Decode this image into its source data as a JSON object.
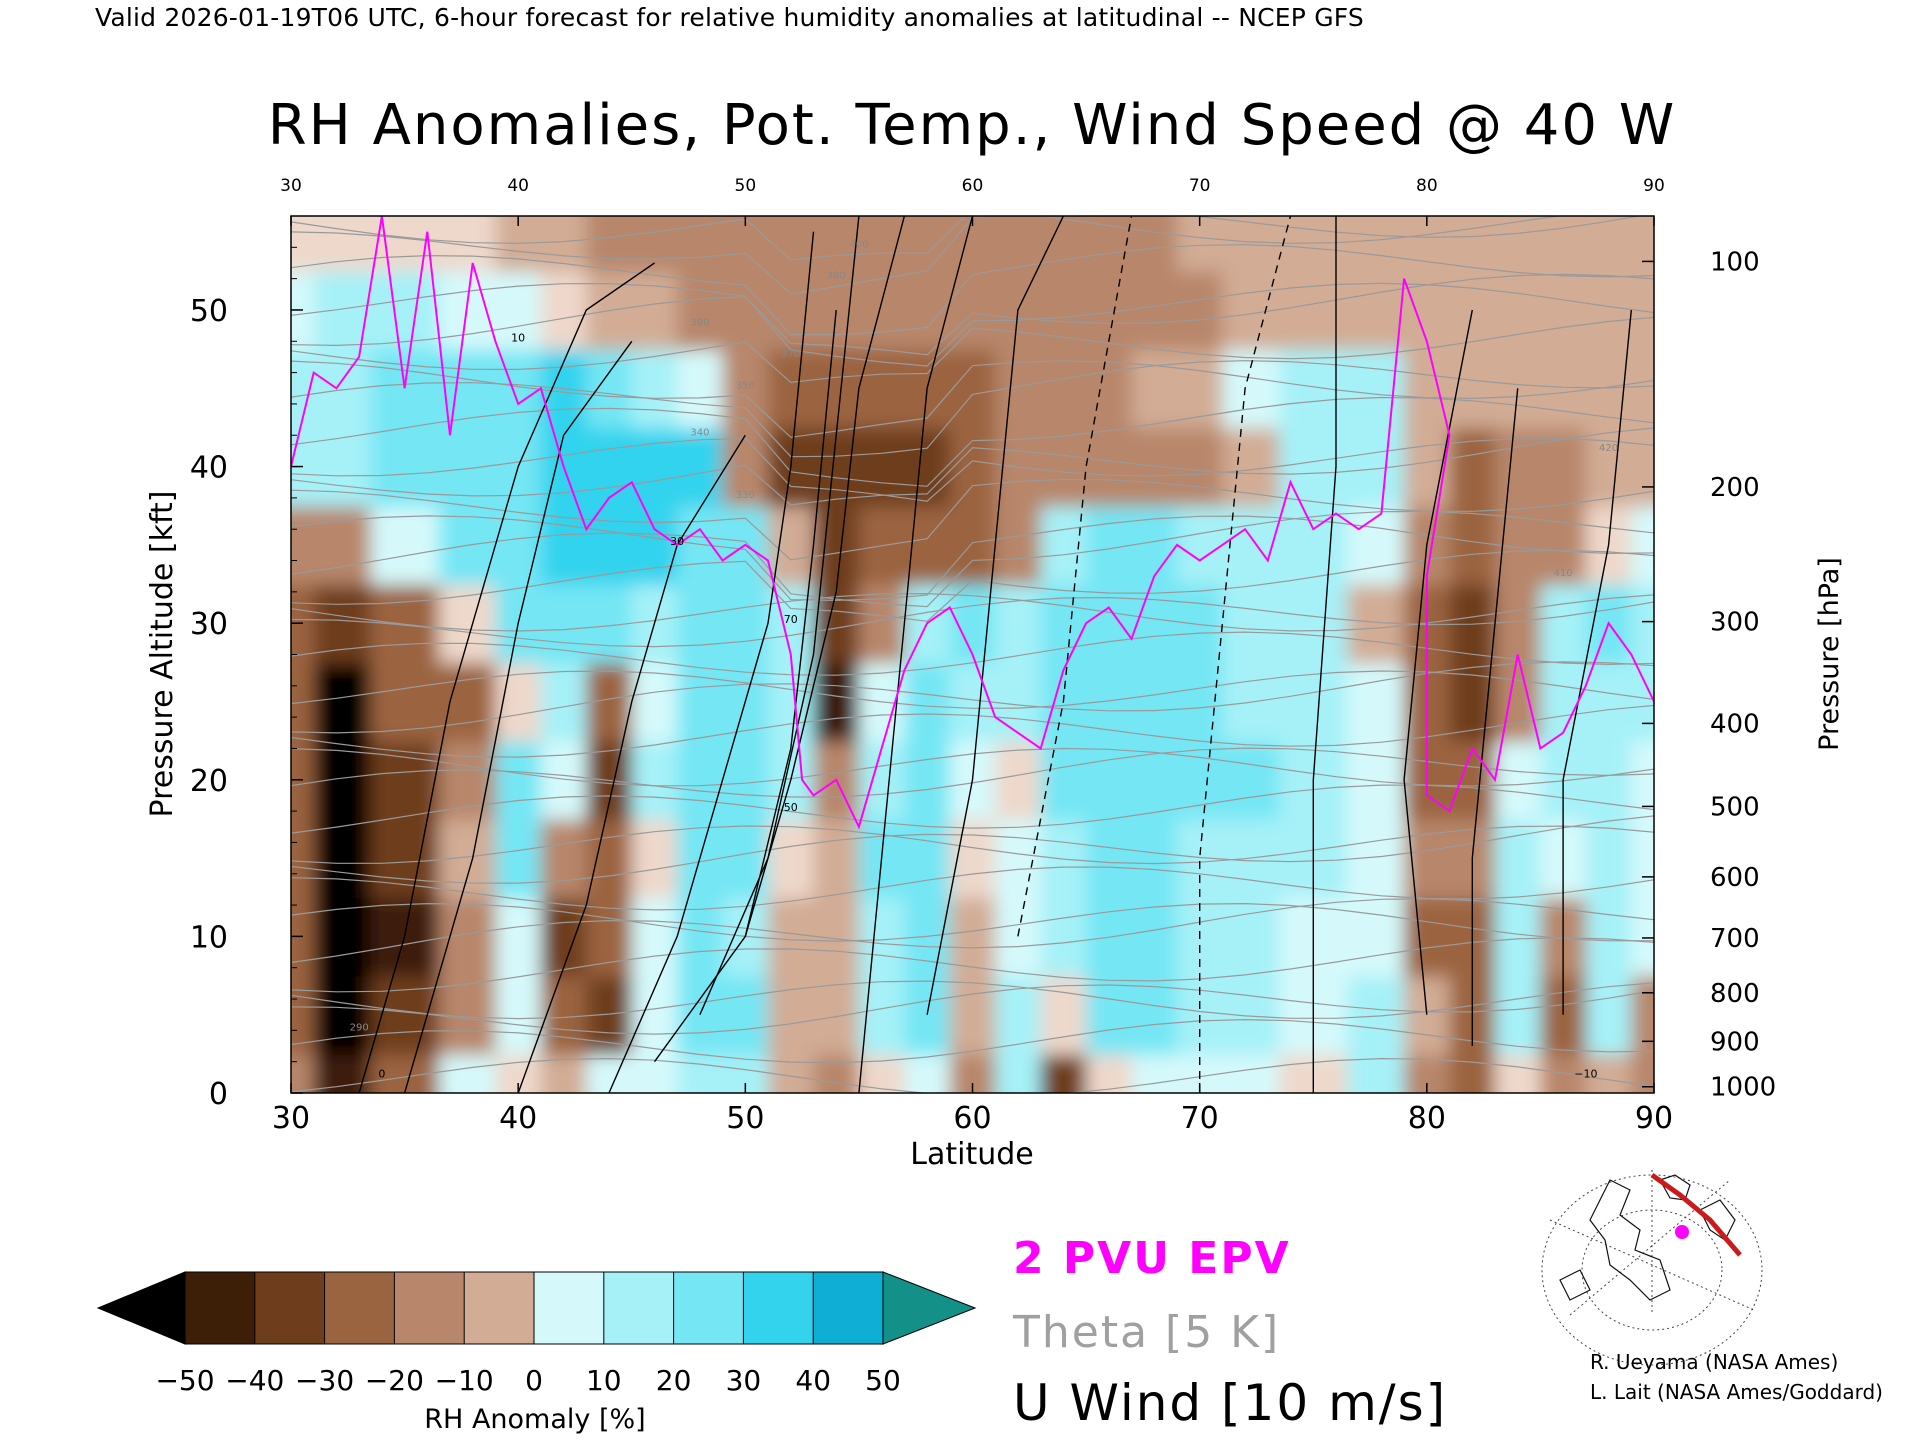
{
  "header": {
    "line": "Valid 2026-01-19T06 UTC, 6-hour forecast for relative humidity anomalies at latitudinal -- NCEP GFS"
  },
  "chart_data": {
    "type": "heatmap",
    "title": "RH Anomalies, Pot. Temp., Wind Speed @ 40 W",
    "xlabel": "Latitude",
    "ylabel": "Pressure Altitude [kft]",
    "ylabel_right": "Pressure [hPa]",
    "xlim": [
      30,
      90
    ],
    "ylim": [
      0,
      56
    ],
    "x_ticks": [
      "30",
      "40",
      "50",
      "60",
      "70",
      "80",
      "90"
    ],
    "x_ticks_top": [
      "30",
      "40",
      "50",
      "60",
      "70",
      "80",
      "90"
    ],
    "y_ticks": [
      "0",
      "10",
      "20",
      "30",
      "40",
      "50"
    ],
    "pressure_ticks": [
      {
        "label": "100",
        "kft": 53.1
      },
      {
        "label": "200",
        "kft": 38.7
      },
      {
        "label": "300",
        "kft": 30.1
      },
      {
        "label": "400",
        "kft": 23.6
      },
      {
        "label": "500",
        "kft": 18.3
      },
      {
        "label": "600",
        "kft": 13.8
      },
      {
        "label": "700",
        "kft": 9.9
      },
      {
        "label": "800",
        "kft": 6.4
      },
      {
        "label": "900",
        "kft": 3.3
      },
      {
        "label": "1000",
        "kft": 0.4
      }
    ],
    "rh_anomaly_field": {
      "lat": [
        30,
        32,
        35,
        38,
        40,
        42,
        44,
        46,
        48,
        50,
        52,
        54,
        56,
        58,
        60,
        62,
        64,
        66,
        68,
        70,
        72,
        75,
        78,
        80,
        82,
        84,
        86,
        88,
        90
      ],
      "kft": [
        0,
        5,
        10,
        15,
        20,
        25,
        30,
        35,
        40,
        45,
        50,
        55
      ],
      "values": [
        [
          -15,
          -45,
          -25,
          10,
          5,
          -5,
          10,
          15,
          20,
          25,
          -10,
          -15,
          5,
          15,
          -15,
          25,
          -40,
          5,
          10,
          15,
          10,
          5,
          20,
          -20,
          -30,
          5,
          -20,
          -10,
          -15
        ],
        [
          -30,
          -55,
          -40,
          -20,
          10,
          -25,
          -35,
          15,
          30,
          30,
          -10,
          -5,
          25,
          35,
          -10,
          20,
          5,
          30,
          30,
          25,
          20,
          15,
          20,
          -10,
          -25,
          25,
          -25,
          20,
          -20
        ],
        [
          -30,
          -55,
          -45,
          -20,
          15,
          -40,
          -30,
          10,
          30,
          25,
          -5,
          -10,
          25,
          35,
          -5,
          15,
          20,
          30,
          30,
          25,
          25,
          15,
          15,
          -25,
          -25,
          20,
          -15,
          20,
          10
        ],
        [
          -30,
          -55,
          -40,
          -10,
          30,
          -20,
          -25,
          0,
          35,
          30,
          5,
          -10,
          30,
          35,
          0,
          15,
          25,
          30,
          30,
          25,
          25,
          20,
          15,
          -15,
          -20,
          20,
          10,
          25,
          15
        ],
        [
          -30,
          -55,
          -35,
          -20,
          30,
          15,
          -35,
          20,
          35,
          30,
          25,
          -20,
          25,
          35,
          15,
          5,
          30,
          35,
          30,
          30,
          30,
          25,
          15,
          -25,
          -25,
          15,
          20,
          25,
          15
        ],
        [
          -30,
          -55,
          -30,
          -30,
          5,
          25,
          -30,
          10,
          35,
          30,
          25,
          -45,
          15,
          30,
          25,
          20,
          35,
          30,
          35,
          35,
          25,
          25,
          10,
          -25,
          -40,
          -20,
          25,
          25,
          20
        ],
        [
          -25,
          -35,
          -30,
          5,
          30,
          30,
          30,
          25,
          30,
          30,
          25,
          -40,
          -20,
          25,
          30,
          20,
          30,
          35,
          35,
          30,
          25,
          20,
          -5,
          -25,
          -40,
          -20,
          25,
          30,
          25
        ],
        [
          -15,
          -15,
          10,
          30,
          35,
          40,
          45,
          40,
          35,
          35,
          -5,
          -35,
          -30,
          -30,
          -30,
          -20,
          25,
          35,
          30,
          25,
          20,
          25,
          15,
          -20,
          -30,
          -20,
          -15,
          5,
          10
        ],
        [
          20,
          25,
          30,
          35,
          35,
          40,
          45,
          45,
          40,
          -20,
          -35,
          -35,
          -35,
          -35,
          -30,
          -20,
          -15,
          -15,
          -20,
          -15,
          -5,
          25,
          25,
          -10,
          -25,
          -15,
          -15,
          -10,
          -10
        ],
        [
          20,
          25,
          30,
          35,
          35,
          40,
          35,
          25,
          15,
          -20,
          -25,
          -30,
          -30,
          -30,
          -25,
          -20,
          -15,
          -15,
          -10,
          -10,
          10,
          20,
          20,
          -5,
          -10,
          -10,
          -10,
          -10,
          -10
        ],
        [
          15,
          20,
          20,
          15,
          10,
          5,
          -5,
          -10,
          -15,
          -15,
          -15,
          -15,
          -15,
          -15,
          -15,
          -15,
          -15,
          -15,
          -15,
          -15,
          -10,
          -10,
          -5,
          -10,
          -10,
          -10,
          -5,
          -5,
          -5
        ],
        [
          5,
          5,
          5,
          0,
          -5,
          -10,
          -15,
          -15,
          -15,
          -15,
          -15,
          -15,
          -15,
          -15,
          -15,
          -15,
          -15,
          -15,
          -15,
          -10,
          -10,
          -10,
          -5,
          -5,
          -5,
          -5,
          -5,
          -5,
          -5
        ]
      ]
    },
    "colorbar": {
      "label": "RH Anomaly [%]",
      "ticks": [
        "−50",
        "−40",
        "−30",
        "−20",
        "−10",
        "0",
        "10",
        "20",
        "30",
        "40",
        "50"
      ],
      "colors": [
        "#3d1f08",
        "#6e3d1c",
        "#9b6441",
        "#b8866a",
        "#d2ac95",
        "#eed8cb",
        "#d5f9fb",
        "#a6f1f8",
        "#74e6f4",
        "#33d3ee",
        "#0eaed5"
      ],
      "under_color": "#000000",
      "over_color": "#139189"
    },
    "legend": [
      {
        "label": "2 PVU EPV",
        "color": "#ff00ff"
      },
      {
        "label": "Theta [5 K]",
        "color": "#a0a0a0"
      },
      {
        "label": "U Wind [10 m/s]",
        "color": "#000000"
      }
    ],
    "theta_labels": [
      "290",
      "330",
      "340",
      "350",
      "370",
      "380",
      "390",
      "400",
      "410",
      "420"
    ],
    "wind_labels": [
      "0",
      "10",
      "30",
      "50",
      "70",
      "−10"
    ],
    "grid": false
  },
  "credits": {
    "line1": "R. Ueyama (NASA Ames)",
    "line2": "L. Lait (NASA Ames/Goddard)"
  },
  "inset_map": {
    "icon": "polar-map-icon",
    "route_color": "#cc1a1a",
    "marker_color": "#ff00ff"
  }
}
